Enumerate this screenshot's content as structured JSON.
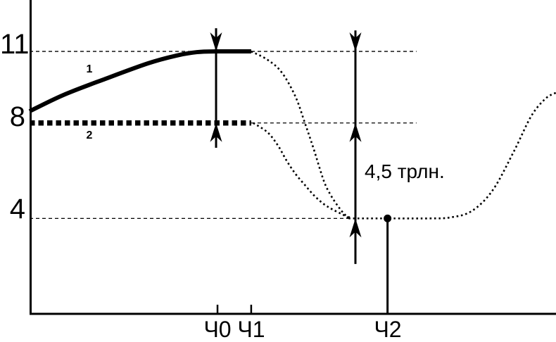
{
  "figure": {
    "background": "#ffffff",
    "ink": "#000000"
  },
  "chart_data": {
    "type": "line",
    "title": "",
    "xlabel": "",
    "ylabel": "",
    "ylim": [
      0,
      13.2
    ],
    "grid": "dashed horizontal guides at y=11, y=8, y=4",
    "legend_position": "inline numeric labels on curves",
    "y_axis": {
      "ticks": [
        {
          "label": "11",
          "value": 11
        },
        {
          "label": "8",
          "value": 8
        },
        {
          "label": "4",
          "value": 4
        }
      ]
    },
    "x_axis": {
      "ticks": [
        {
          "label": "Ч0",
          "x_pct": 35.7
        },
        {
          "label": "Ч1",
          "x_pct": 42.1
        },
        {
          "label": "Ч2",
          "x_pct": 68.0
        }
      ]
    },
    "annotation": {
      "text": "4,5 трлн.",
      "between_values": [
        8,
        4
      ],
      "x_pct": 63.7
    },
    "series": [
      {
        "label": "1",
        "name": "series-1-solid-rise-to-11",
        "style": "solid",
        "width": 6,
        "smooth": true,
        "points": [
          [
            0,
            8.49
          ],
          [
            6.4,
            9.17
          ],
          [
            14.4,
            9.85
          ],
          [
            22.5,
            10.5
          ],
          [
            27.8,
            10.82
          ],
          [
            31.8,
            10.97
          ],
          [
            35.8,
            11
          ],
          [
            42.1,
            11
          ]
        ]
      },
      {
        "label": "2",
        "name": "series-2-thick-dashed-level-8",
        "style": "thick-dashed",
        "width": 7.5,
        "dash": [
          7.5,
          5
        ],
        "smooth": false,
        "points": [
          [
            0,
            8
          ],
          [
            42.1,
            8
          ]
        ]
      },
      {
        "name": "projection-drop-from-11",
        "style": "dotted",
        "width": 2.6,
        "dash": [
          2.6,
          3.8
        ],
        "smooth": true,
        "points": [
          [
            42.1,
            11
          ],
          [
            45.2,
            10.65
          ],
          [
            47.9,
            10.12
          ],
          [
            50.5,
            9.11
          ],
          [
            52.3,
            8
          ],
          [
            53.9,
            6.96
          ],
          [
            55.9,
            5.57
          ],
          [
            57.2,
            4.98
          ],
          [
            58.6,
            4.51
          ],
          [
            59.9,
            4.16
          ],
          [
            61,
            4.02
          ]
        ]
      },
      {
        "name": "projection-drop-from-8",
        "style": "dotted",
        "width": 2.6,
        "dash": [
          2.6,
          3.8
        ],
        "smooth": true,
        "points": [
          [
            42.5,
            8
          ],
          [
            45.2,
            7.61
          ],
          [
            47.2,
            7.05
          ],
          [
            48.8,
            6.43
          ],
          [
            50.5,
            5.87
          ],
          [
            52.3,
            5.4
          ],
          [
            54.1,
            4.95
          ],
          [
            55.9,
            4.6
          ],
          [
            57.6,
            4.37
          ],
          [
            59.5,
            4.16
          ],
          [
            60.6,
            4.02
          ]
        ]
      },
      {
        "name": "projection-bottom-and-recovery",
        "style": "dotted",
        "width": 2.6,
        "dash": [
          2.6,
          3.8
        ],
        "smooth": true,
        "points": [
          [
            60.6,
            4
          ],
          [
            69.3,
            4
          ],
          [
            76,
            4
          ],
          [
            79.9,
            4.04
          ],
          [
            84,
            4.31
          ],
          [
            88,
            5.19
          ],
          [
            92,
            6.81
          ],
          [
            95.3,
            8.29
          ],
          [
            98,
            9.02
          ],
          [
            100,
            9.27
          ]
        ]
      }
    ],
    "gridlines": [
      {
        "value": 11,
        "x1_pct": 0,
        "x2_pct": 73.5
      },
      {
        "value": 8,
        "x1_pct": 42.1,
        "x2_pct": 73.5
      },
      {
        "value": 4,
        "x1_pct": 0,
        "x2_pct": 61.2
      }
    ],
    "arrows": [
      {
        "name": "gap-arrow-at-ch0",
        "x_pct": 35.43,
        "from_value": 11.97,
        "to_value": 6.96,
        "heads": [
          {
            "value": 11,
            "dir": "down"
          },
          {
            "value": 8,
            "dir": "up"
          }
        ]
      },
      {
        "name": "gap-arrow-4-5-trln",
        "x_pct": 61.9,
        "from_value": 11.88,
        "to_value": 2.09,
        "heads": [
          {
            "value": 11,
            "dir": "down"
          },
          {
            "value": 8,
            "dir": "up"
          },
          {
            "value": 4,
            "dir": "up"
          }
        ]
      }
    ],
    "marker": {
      "name": "point-at-ch2",
      "x_pct": 68.0,
      "value": 4,
      "stem_to_value": 0
    },
    "axis_ticks": [
      {
        "x_pct": 35.7
      },
      {
        "x_pct": 42.1
      }
    ]
  }
}
